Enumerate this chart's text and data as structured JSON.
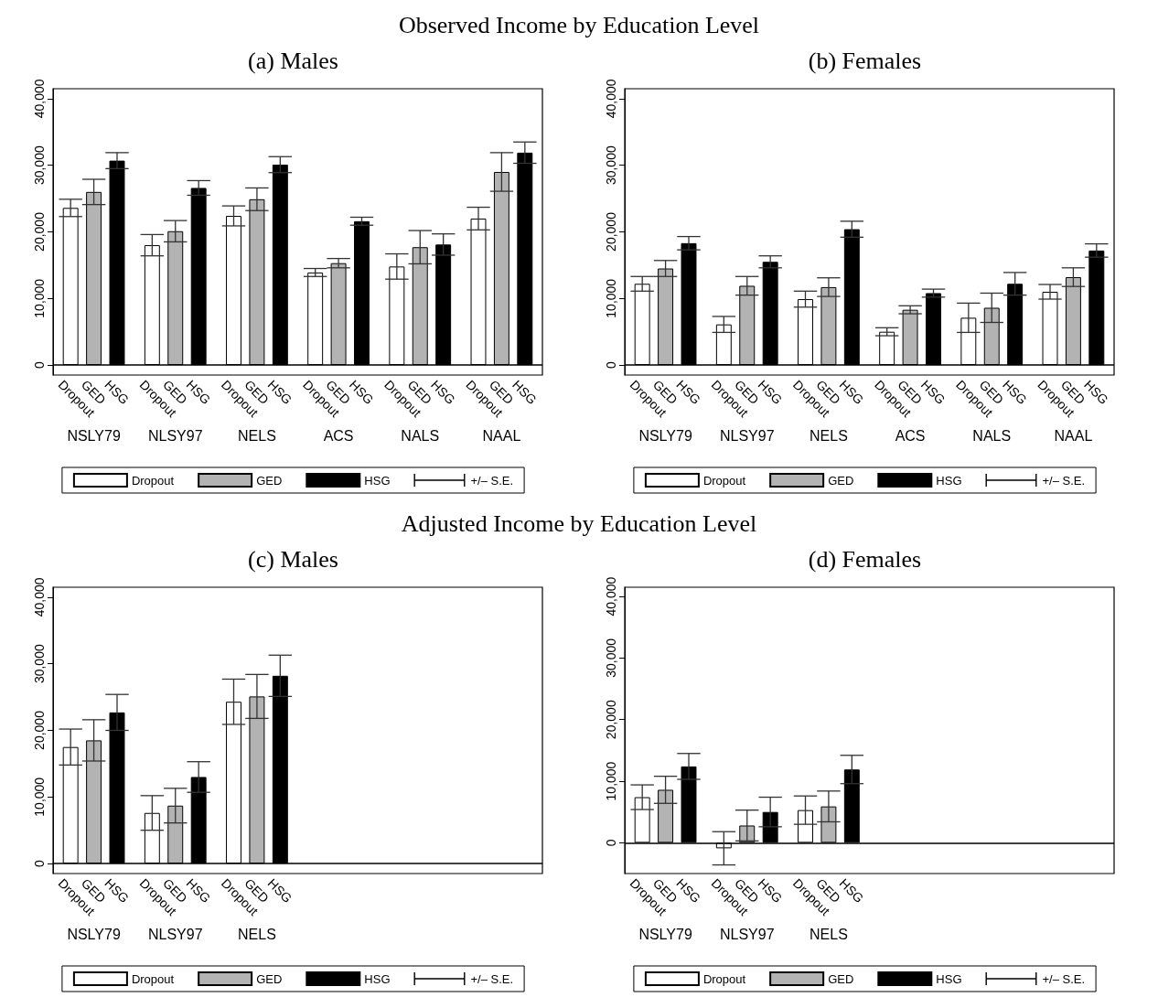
{
  "chart_data": [
    {
      "type": "bar",
      "title": "Observed Income by Education Level",
      "subtitle": "(a) Males",
      "categories": [
        "NSLY79",
        "NLSY97",
        "NELS",
        "ACS",
        "NALS",
        "NAAL"
      ],
      "series": [
        {
          "name": "Dropout",
          "color": "#ffffff",
          "values": [
            23600,
            18000,
            22400,
            13900,
            14800,
            22000
          ],
          "errors": [
            1300,
            1600,
            1500,
            600,
            1900,
            1700
          ]
        },
        {
          "name": "GED",
          "color": "#b3b3b3",
          "values": [
            26000,
            20100,
            24900,
            15300,
            17700,
            29000
          ],
          "errors": [
            1900,
            1600,
            1700,
            700,
            2500,
            2900
          ]
        },
        {
          "name": "HSG",
          "color": "#000000",
          "values": [
            30700,
            26600,
            30100,
            21600,
            18100,
            31900
          ],
          "errors": [
            1200,
            1100,
            1200,
            600,
            1600,
            1600
          ]
        }
      ],
      "ylim": [
        -1500,
        41500
      ],
      "yticks": [
        {
          "value": 0,
          "label": "0"
        },
        {
          "value": 10000,
          "label": "10,000"
        },
        {
          "value": 20000,
          "label": "20,000"
        },
        {
          "value": 30000,
          "label": "30,000"
        },
        {
          "value": 40000,
          "label": "40,000"
        }
      ],
      "ref_lines": [
        {
          "axis": "y",
          "value": 0
        }
      ],
      "legend": "bottom",
      "annotations": [
        "+/– S.E."
      ]
    },
    {
      "type": "bar",
      "subtitle": "(b) Females",
      "categories": [
        "NSLY79",
        "NLSY97",
        "NELS",
        "ACS",
        "NALS",
        "NAAL"
      ],
      "series": [
        {
          "name": "Dropout",
          "color": "#ffffff",
          "values": [
            12200,
            6100,
            9900,
            5000,
            7100,
            11000
          ],
          "errors": [
            1100,
            1200,
            1200,
            600,
            2200,
            1100
          ]
        },
        {
          "name": "GED",
          "color": "#b3b3b3",
          "values": [
            14500,
            11900,
            11700,
            8300,
            8600,
            13200
          ],
          "errors": [
            1200,
            1400,
            1400,
            600,
            2200,
            1400
          ]
        },
        {
          "name": "HSG",
          "color": "#000000",
          "values": [
            18300,
            15500,
            20400,
            10800,
            12200,
            17200
          ],
          "errors": [
            1000,
            900,
            1200,
            600,
            1700,
            1000
          ]
        }
      ],
      "ylim": [
        -1500,
        41500
      ],
      "yticks": [
        {
          "value": 0,
          "label": "0"
        },
        {
          "value": 10000,
          "label": "10,000"
        },
        {
          "value": 20000,
          "label": "20,000"
        },
        {
          "value": 30000,
          "label": "30,000"
        },
        {
          "value": 40000,
          "label": "40,000"
        }
      ],
      "ref_lines": [
        {
          "axis": "y",
          "value": 0
        }
      ],
      "legend": "bottom",
      "annotations": [
        "+/– S.E."
      ]
    },
    {
      "type": "bar",
      "title": "Adjusted Income by Education Level",
      "subtitle": "(c) Males",
      "categories": [
        "NSLY79",
        "NLSY97",
        "NELS",
        null,
        null,
        null
      ],
      "series": [
        {
          "name": "Dropout",
          "color": "#ffffff",
          "values": [
            17500,
            7600,
            24300,
            null,
            null,
            null
          ],
          "errors": [
            2700,
            2600,
            3400,
            null,
            null,
            null
          ]
        },
        {
          "name": "GED",
          "color": "#b3b3b3",
          "values": [
            18500,
            8700,
            25100,
            null,
            null,
            null
          ],
          "errors": [
            3100,
            2600,
            3300,
            null,
            null,
            null
          ]
        },
        {
          "name": "HSG",
          "color": "#000000",
          "values": [
            22700,
            13000,
            28200,
            null,
            null,
            null
          ],
          "errors": [
            2700,
            2300,
            3100,
            null,
            null,
            null
          ]
        }
      ],
      "ylim": [
        -1500,
        41500
      ],
      "yticks": [
        {
          "value": 0,
          "label": "0"
        },
        {
          "value": 10000,
          "label": "10,000"
        },
        {
          "value": 20000,
          "label": "20,000"
        },
        {
          "value": 30000,
          "label": "30,000"
        },
        {
          "value": 40000,
          "label": "40,000"
        }
      ],
      "ref_lines": [
        {
          "axis": "y",
          "value": 0
        }
      ],
      "legend": "bottom",
      "annotations": [
        "+/– S.E."
      ]
    },
    {
      "type": "bar",
      "subtitle": "(d) Females",
      "categories": [
        "NSLY79",
        "NLSY97",
        "NELS",
        null,
        null,
        null
      ],
      "series": [
        {
          "name": "Dropout",
          "color": "#ffffff",
          "values": [
            7400,
            -900,
            5300,
            null,
            null,
            null
          ],
          "errors": [
            2000,
            2700,
            2300,
            null,
            null,
            null
          ]
        },
        {
          "name": "GED",
          "color": "#b3b3b3",
          "values": [
            8600,
            2800,
            5900,
            null,
            null,
            null
          ],
          "errors": [
            2200,
            2500,
            2500,
            null,
            null,
            null
          ]
        },
        {
          "name": "HSG",
          "color": "#000000",
          "values": [
            12400,
            5000,
            11900,
            null,
            null,
            null
          ],
          "errors": [
            2100,
            2400,
            2300,
            null,
            null,
            null
          ]
        }
      ],
      "ylim": [
        -5000,
        41500
      ],
      "yticks": [
        {
          "value": 0,
          "label": "0"
        },
        {
          "value": 10000,
          "label": "10,000"
        },
        {
          "value": 20000,
          "label": "20,000"
        },
        {
          "value": 30000,
          "label": "30,000"
        },
        {
          "value": 40000,
          "label": "40,000"
        }
      ],
      "ref_lines": [
        {
          "axis": "y",
          "value": 0
        }
      ],
      "legend": "bottom",
      "annotations": [
        "+/– S.E."
      ]
    }
  ]
}
